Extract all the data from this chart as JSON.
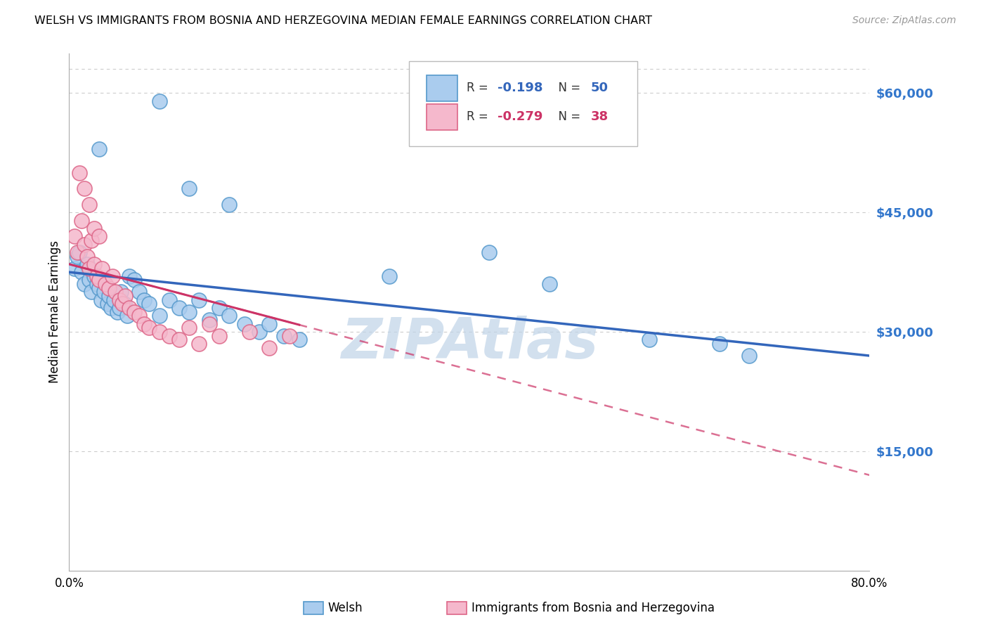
{
  "title": "WELSH VS IMMIGRANTS FROM BOSNIA AND HERZEGOVINA MEDIAN FEMALE EARNINGS CORRELATION CHART",
  "source": "Source: ZipAtlas.com",
  "ylabel": "Median Female Earnings",
  "x_min": 0.0,
  "x_max": 0.8,
  "y_min": 0,
  "y_max": 65000,
  "ytick_positions": [
    15000,
    30000,
    45000,
    60000
  ],
  "ytick_labels": [
    "$15,000",
    "$30,000",
    "$45,000",
    "$60,000"
  ],
  "xtick_positions": [
    0.0,
    0.1,
    0.2,
    0.3,
    0.4,
    0.5,
    0.6,
    0.7,
    0.8
  ],
  "xtick_labels": [
    "0.0%",
    "",
    "",
    "",
    "",
    "",
    "",
    "",
    "80.0%"
  ],
  "grid_color": "#cccccc",
  "background_color": "#ffffff",
  "watermark": "ZIPAtlas",
  "watermark_color": "#c0d4e8",
  "welsh_face": "#aaccee",
  "welsh_edge": "#5599cc",
  "welsh_line": "#3366bb",
  "bosnia_face": "#f5b8cc",
  "bosnia_edge": "#dd6688",
  "bosnia_line": "#cc3366",
  "welsh_R": -0.198,
  "welsh_N": 50,
  "bosnia_R": -0.279,
  "bosnia_N": 38,
  "welsh_x": [
    0.005,
    0.008,
    0.01,
    0.012,
    0.015,
    0.018,
    0.02,
    0.022,
    0.025,
    0.028,
    0.03,
    0.032,
    0.035,
    0.038,
    0.04,
    0.042,
    0.045,
    0.048,
    0.05,
    0.052,
    0.055,
    0.058,
    0.06,
    0.065,
    0.07,
    0.075,
    0.08,
    0.09,
    0.1,
    0.11,
    0.12,
    0.13,
    0.14,
    0.15,
    0.16,
    0.175,
    0.19,
    0.2,
    0.215,
    0.23,
    0.16,
    0.12,
    0.09,
    0.32,
    0.42,
    0.48,
    0.58,
    0.65,
    0.68,
    0.03
  ],
  "welsh_y": [
    38000,
    39500,
    40000,
    37500,
    36000,
    38500,
    36500,
    35000,
    37000,
    36000,
    35500,
    34000,
    35000,
    33500,
    34500,
    33000,
    34000,
    32500,
    33000,
    35000,
    33500,
    32000,
    37000,
    36500,
    35000,
    34000,
    33500,
    32000,
    34000,
    33000,
    32500,
    34000,
    31500,
    33000,
    32000,
    31000,
    30000,
    31000,
    29500,
    29000,
    46000,
    48000,
    59000,
    37000,
    40000,
    36000,
    29000,
    28500,
    27000,
    53000
  ],
  "bosnia_x": [
    0.005,
    0.008,
    0.012,
    0.015,
    0.018,
    0.02,
    0.022,
    0.025,
    0.028,
    0.03,
    0.033,
    0.036,
    0.04,
    0.043,
    0.046,
    0.05,
    0.053,
    0.056,
    0.06,
    0.065,
    0.07,
    0.075,
    0.08,
    0.09,
    0.1,
    0.11,
    0.12,
    0.13,
    0.14,
    0.15,
    0.01,
    0.015,
    0.02,
    0.025,
    0.03,
    0.18,
    0.2,
    0.22
  ],
  "bosnia_y": [
    42000,
    40000,
    44000,
    41000,
    39500,
    38000,
    41500,
    38500,
    37000,
    36500,
    38000,
    36000,
    35500,
    37000,
    35000,
    34000,
    33500,
    34500,
    33000,
    32500,
    32000,
    31000,
    30500,
    30000,
    29500,
    29000,
    30500,
    28500,
    31000,
    29500,
    50000,
    48000,
    46000,
    43000,
    42000,
    30000,
    28000,
    29500
  ]
}
